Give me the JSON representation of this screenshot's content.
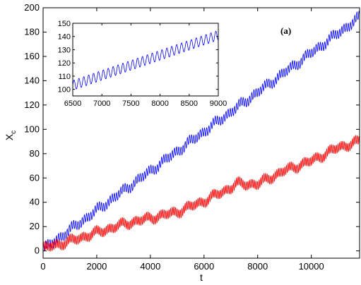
{
  "chart_data": [
    {
      "id": "main",
      "type": "line",
      "panel_label": "(a)",
      "xlabel": "t",
      "ylabel_main": "X",
      "ylabel_sub": "c",
      "xlim": [
        0,
        11800
      ],
      "ylim": [
        -6,
        200
      ],
      "xticks": [
        0,
        2000,
        4000,
        6000,
        8000,
        10000
      ],
      "yticks": [
        0,
        20,
        40,
        60,
        80,
        100,
        120,
        140,
        160,
        180,
        200
      ],
      "grid": false,
      "legend": "none",
      "series": [
        {
          "color": "#0000ff",
          "oscillation_amplitude": 3.5,
          "oscillation_period": 80,
          "x": [
            0,
            11800
          ],
          "y": [
            1,
            192
          ]
        },
        {
          "color": "#ff0000",
          "oscillation_amplitude": 3.5,
          "oscillation_period": 60,
          "x": [
            0,
            1000,
            2000,
            3000,
            4000,
            5000,
            6000,
            7000,
            7200,
            8000,
            9000,
            10000,
            11000,
            11800
          ],
          "y": [
            2,
            8,
            15,
            22,
            27,
            32,
            41,
            52,
            55,
            55,
            66,
            74,
            85,
            90
          ]
        }
      ]
    },
    {
      "id": "inset",
      "type": "line",
      "xlim": [
        6500,
        9000
      ],
      "ylim": [
        95,
        150
      ],
      "xticks": [
        6500,
        7000,
        7500,
        8000,
        8500,
        9000
      ],
      "yticks": [
        100,
        110,
        120,
        130,
        140,
        150
      ],
      "grid": false,
      "series": [
        {
          "color": "#0000ff",
          "oscillation_amplitude": 3.8,
          "oscillation_period": 84,
          "x": [
            6500,
            9000
          ],
          "y": [
            103,
            141
          ]
        }
      ]
    }
  ]
}
